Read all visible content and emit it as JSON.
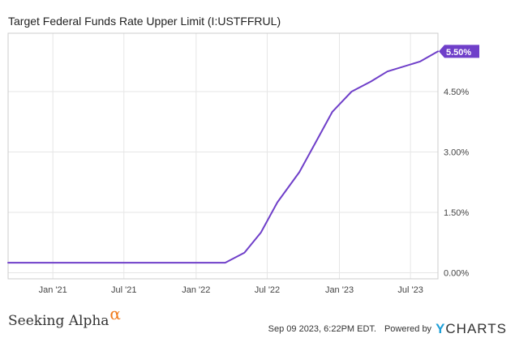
{
  "chart_data": {
    "type": "line",
    "title": "Target Federal Funds Rate Upper Limit (I:USTFFRUL)",
    "xlabel": "",
    "ylabel": "",
    "x_tick_labels": [
      "Jan '21",
      "Jul '21",
      "Jan '22",
      "Jul '22",
      "Jan '23",
      "Jul '23"
    ],
    "x_tick_dates": [
      "2021-01-01",
      "2021-07-01",
      "2022-01-01",
      "2022-07-01",
      "2023-01-01",
      "2023-07-01"
    ],
    "x_range": [
      "2020-09-09",
      "2023-09-09"
    ],
    "y_tick_labels": [
      "0.00%",
      "1.50%",
      "3.00%",
      "4.50%"
    ],
    "y_ticks": [
      0,
      1.5,
      3.0,
      4.5
    ],
    "ylim": [
      -0.15,
      5.95
    ],
    "grid": true,
    "line_color": "#6f3fc9",
    "series": [
      {
        "x": [
          "2020-09-09",
          "2022-03-16",
          "2022-05-04",
          "2022-06-15",
          "2022-07-27",
          "2022-09-21",
          "2022-11-02",
          "2022-12-14",
          "2023-02-01",
          "2023-03-22",
          "2023-05-03",
          "2023-07-26",
          "2023-09-09"
        ],
        "values": [
          0.25,
          0.25,
          0.5,
          1.0,
          1.75,
          2.5,
          3.25,
          4.0,
          4.5,
          4.75,
          5.0,
          5.25,
          5.5
        ]
      }
    ],
    "last_value_label": "5.50%"
  },
  "footer": {
    "brand_name": "Seeking Alpha",
    "brand_symbol": "α",
    "timestamp": "Sep 09 2023, 6:22PM EDT.",
    "powered_by": "Powered by",
    "ycharts_y": "Y",
    "ycharts_rest": "CHARTS"
  }
}
